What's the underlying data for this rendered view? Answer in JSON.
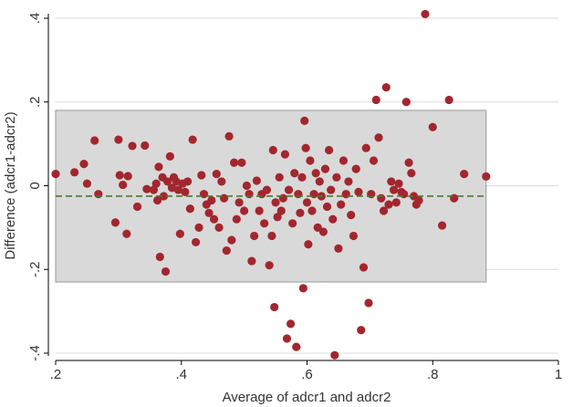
{
  "chart_data": {
    "type": "scatter",
    "title": "",
    "xlabel": "Average of adcr1 and adcr2",
    "ylabel": "Difference (adcr1-adcr2)",
    "xlim": [
      0.2,
      1.0
    ],
    "ylim": [
      -0.4,
      0.4
    ],
    "x_ticks": [
      0.2,
      0.4,
      0.6,
      0.8,
      1
    ],
    "x_tick_labels": [
      ".2",
      ".4",
      ".6",
      ".8",
      "1"
    ],
    "y_ticks": [
      -0.4,
      -0.2,
      0,
      0.2,
      0.4
    ],
    "y_tick_labels": [
      "-.4",
      "-.2",
      "0",
      ".2",
      ".4"
    ],
    "grid": true,
    "legend": "none",
    "colors": {
      "points": "#a3262e",
      "band_fill": "#d9d9d9",
      "band_stroke": "#9a9a9a",
      "mean_line": "#4a7a2a",
      "grid": "#dcdcdc",
      "axis": "#000000"
    },
    "limits_of_agreement": {
      "upper": 0.18,
      "lower": -0.23
    },
    "x_extent": [
      0.2,
      0.885
    ],
    "mean_difference": -0.025,
    "points": [
      [
        0.2,
        0.028
      ],
      [
        0.23,
        0.032
      ],
      [
        0.245,
        0.052
      ],
      [
        0.25,
        0.005
      ],
      [
        0.262,
        0.108
      ],
      [
        0.268,
        -0.02
      ],
      [
        0.295,
        -0.088
      ],
      [
        0.3,
        0.11
      ],
      [
        0.302,
        0.025
      ],
      [
        0.307,
        0.002
      ],
      [
        0.313,
        -0.115
      ],
      [
        0.315,
        0.023
      ],
      [
        0.322,
        0.095
      ],
      [
        0.33,
        -0.05
      ],
      [
        0.342,
        0.096
      ],
      [
        0.345,
        -0.008
      ],
      [
        0.356,
        -0.01
      ],
      [
        0.36,
        0.005
      ],
      [
        0.362,
        -0.035
      ],
      [
        0.364,
        0.045
      ],
      [
        0.366,
        -0.17
      ],
      [
        0.37,
        0.02
      ],
      [
        0.372,
        -0.025
      ],
      [
        0.375,
        -0.205
      ],
      [
        0.378,
        0.01
      ],
      [
        0.382,
        0.07
      ],
      [
        0.385,
        -0.005
      ],
      [
        0.388,
        0.02
      ],
      [
        0.392,
        0.01
      ],
      [
        0.395,
        -0.01
      ],
      [
        0.398,
        -0.115
      ],
      [
        0.402,
        0.005
      ],
      [
        0.406,
        -0.015
      ],
      [
        0.41,
        0.01
      ],
      [
        0.414,
        -0.055
      ],
      [
        0.418,
        0.11
      ],
      [
        0.423,
        -0.135
      ],
      [
        0.428,
        -0.1
      ],
      [
        0.432,
        0.025
      ],
      [
        0.436,
        -0.02
      ],
      [
        0.44,
        -0.045
      ],
      [
        0.444,
        -0.065
      ],
      [
        0.448,
        -0.035
      ],
      [
        0.452,
        -0.08
      ],
      [
        0.456,
        0.028
      ],
      [
        0.46,
        -0.1
      ],
      [
        0.464,
        0.01
      ],
      [
        0.468,
        -0.03
      ],
      [
        0.472,
        -0.155
      ],
      [
        0.476,
        0.118
      ],
      [
        0.48,
        -0.13
      ],
      [
        0.484,
        0.055
      ],
      [
        0.488,
        -0.08
      ],
      [
        0.492,
        -0.04
      ],
      [
        0.496,
        0.055
      ],
      [
        0.5,
        -0.06
      ],
      [
        0.504,
        0.0
      ],
      [
        0.508,
        -0.02
      ],
      [
        0.512,
        -0.18
      ],
      [
        0.516,
        -0.12
      ],
      [
        0.52,
        0.012
      ],
      [
        0.524,
        -0.06
      ],
      [
        0.528,
        -0.02
      ],
      [
        0.532,
        -0.09
      ],
      [
        0.536,
        -0.01
      ],
      [
        0.54,
        -0.19
      ],
      [
        0.544,
        -0.12
      ],
      [
        0.546,
        0.085
      ],
      [
        0.548,
        -0.29
      ],
      [
        0.55,
        -0.04
      ],
      [
        0.553,
        -0.075
      ],
      [
        0.556,
        0.02
      ],
      [
        0.559,
        -0.06
      ],
      [
        0.562,
        -0.03
      ],
      [
        0.565,
        0.075
      ],
      [
        0.568,
        -0.365
      ],
      [
        0.571,
        -0.01
      ],
      [
        0.574,
        -0.33
      ],
      [
        0.577,
        -0.09
      ],
      [
        0.58,
        0.03
      ],
      [
        0.583,
        -0.385
      ],
      [
        0.586,
        -0.02
      ],
      [
        0.589,
        -0.065
      ],
      [
        0.592,
        0.02
      ],
      [
        0.594,
        -0.245
      ],
      [
        0.596,
        0.155
      ],
      [
        0.598,
        0.09
      ],
      [
        0.6,
        -0.04
      ],
      [
        0.602,
        -0.14
      ],
      [
        0.605,
        0.06
      ],
      [
        0.608,
        -0.06
      ],
      [
        0.611,
        -0.02
      ],
      [
        0.614,
        0.03
      ],
      [
        0.617,
        -0.1
      ],
      [
        0.62,
        0.01
      ],
      [
        0.623,
        -0.025
      ],
      [
        0.626,
        -0.11
      ],
      [
        0.629,
        0.04
      ],
      [
        0.632,
        -0.05
      ],
      [
        0.635,
        0.085
      ],
      [
        0.638,
        -0.01
      ],
      [
        0.641,
        -0.08
      ],
      [
        0.644,
        -0.405
      ],
      [
        0.647,
        0.02
      ],
      [
        0.65,
        -0.15
      ],
      [
        0.654,
        -0.045
      ],
      [
        0.658,
        0.06
      ],
      [
        0.662,
        -0.02
      ],
      [
        0.666,
        0.01
      ],
      [
        0.67,
        -0.07
      ],
      [
        0.674,
        -0.12
      ],
      [
        0.678,
        0.04
      ],
      [
        0.682,
        -0.015
      ],
      [
        0.686,
        -0.345
      ],
      [
        0.69,
        -0.195
      ],
      [
        0.694,
        0.09
      ],
      [
        0.698,
        -0.28
      ],
      [
        0.702,
        -0.02
      ],
      [
        0.706,
        0.06
      ],
      [
        0.71,
        0.205
      ],
      [
        0.714,
        0.115
      ],
      [
        0.718,
        -0.03
      ],
      [
        0.722,
        -0.06
      ],
      [
        0.726,
        0.235
      ],
      [
        0.73,
        -0.045
      ],
      [
        0.734,
        0.01
      ],
      [
        0.738,
        -0.01
      ],
      [
        0.742,
        -0.04
      ],
      [
        0.746,
        0.005
      ],
      [
        0.75,
        -0.015
      ],
      [
        0.754,
        -0.02
      ],
      [
        0.758,
        0.2
      ],
      [
        0.762,
        0.055
      ],
      [
        0.766,
        0.03
      ],
      [
        0.77,
        -0.025
      ],
      [
        0.774,
        -0.045
      ],
      [
        0.778,
        -0.035
      ],
      [
        0.788,
        0.41
      ],
      [
        0.8,
        0.14
      ],
      [
        0.815,
        -0.095
      ],
      [
        0.826,
        0.205
      ],
      [
        0.834,
        -0.03
      ],
      [
        0.85,
        0.028
      ],
      [
        0.885,
        0.022
      ]
    ]
  }
}
